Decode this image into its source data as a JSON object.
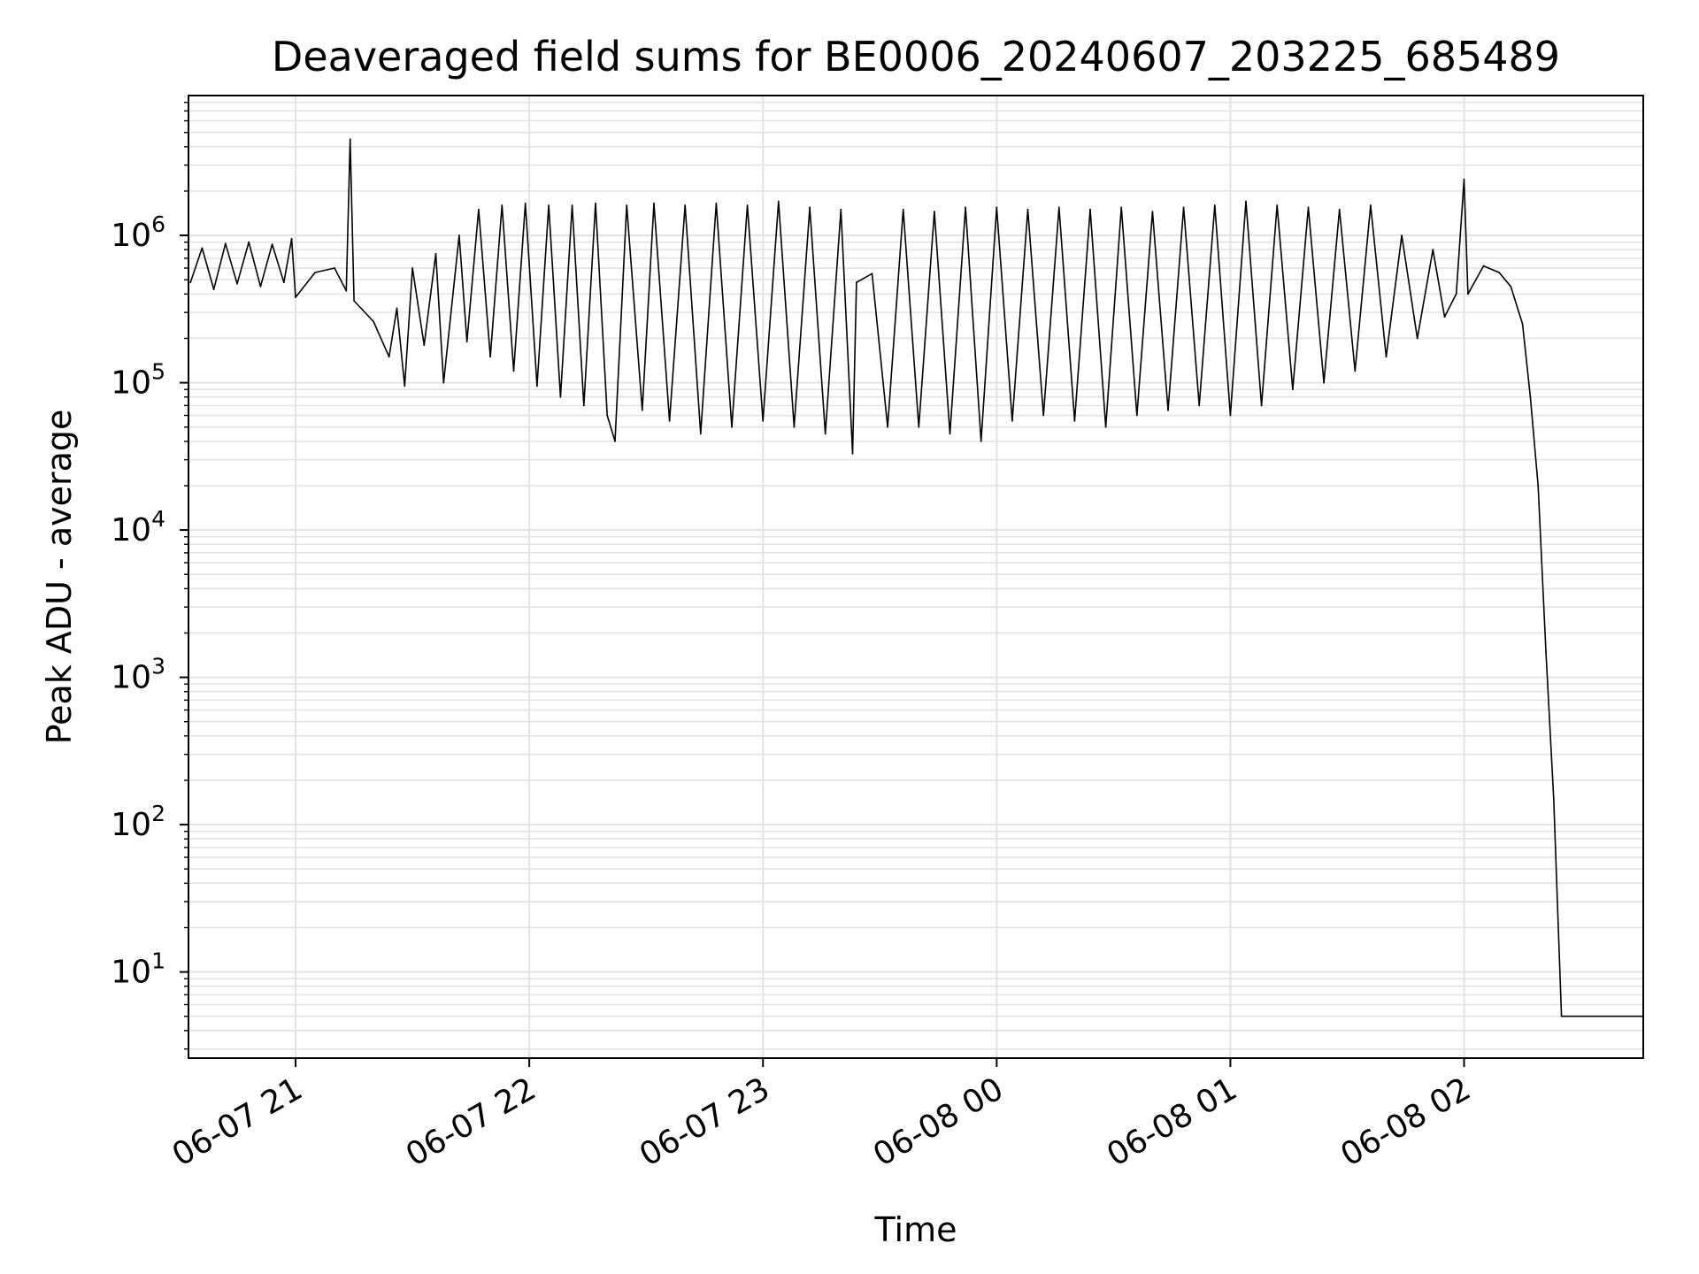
{
  "chart_data": {
    "type": "line",
    "title": "Deaveraged field sums for BE0006_20240607_203225_685489",
    "xlabel": "Time",
    "ylabel": "Peak ADU - average",
    "yscale": "log",
    "grid": true,
    "legend": "none",
    "line_color": "#000000",
    "grid_color": "#e3e3e3",
    "x_ticks": [
      {
        "value": "2024-06-07 21:00",
        "label": "06-07 21"
      },
      {
        "value": "2024-06-07 22:00",
        "label": "06-07 22"
      },
      {
        "value": "2024-06-07 23:00",
        "label": "06-07 23"
      },
      {
        "value": "2024-06-08 00:00",
        "label": "06-08 00"
      },
      {
        "value": "2024-06-08 01:00",
        "label": "06-08 01"
      },
      {
        "value": "2024-06-08 02:00",
        "label": "06-08 02"
      }
    ],
    "y_ticks": [
      {
        "value": 10,
        "base": "10",
        "exp": "1"
      },
      {
        "value": 100,
        "base": "10",
        "exp": "2"
      },
      {
        "value": 1000,
        "base": "10",
        "exp": "3"
      },
      {
        "value": 10000,
        "base": "10",
        "exp": "4"
      },
      {
        "value": 100000,
        "base": "10",
        "exp": "5"
      },
      {
        "value": 1000000,
        "base": "10",
        "exp": "6"
      }
    ],
    "xlim": [
      "2024-06-07 20:32:30",
      "2024-06-08 02:46:00"
    ],
    "ylim": [
      2.6,
      8900000
    ],
    "series": [
      {
        "points": [
          [
            "2024-06-07 20:33:00",
            480000
          ],
          [
            "2024-06-07 20:36:00",
            820000
          ],
          [
            "2024-06-07 20:39:00",
            430000
          ],
          [
            "2024-06-07 20:42:00",
            880000
          ],
          [
            "2024-06-07 20:45:00",
            470000
          ],
          [
            "2024-06-07 20:48:00",
            900000
          ],
          [
            "2024-06-07 20:51:00",
            450000
          ],
          [
            "2024-06-07 20:54:00",
            870000
          ],
          [
            "2024-06-07 20:57:00",
            480000
          ],
          [
            "2024-06-07 20:59:00",
            950000
          ],
          [
            "2024-06-07 21:00:00",
            380000
          ],
          [
            "2024-06-07 21:05:00",
            560000
          ],
          [
            "2024-06-07 21:10:00",
            600000
          ],
          [
            "2024-06-07 21:13:00",
            420000
          ],
          [
            "2024-06-07 21:14:00",
            4500000
          ],
          [
            "2024-06-07 21:15:00",
            360000
          ],
          [
            "2024-06-07 21:20:00",
            260000
          ],
          [
            "2024-06-07 21:24:00",
            150000
          ],
          [
            "2024-06-07 21:26:00",
            320000
          ],
          [
            "2024-06-07 21:28:00",
            95000
          ],
          [
            "2024-06-07 21:30:00",
            600000
          ],
          [
            "2024-06-07 21:33:00",
            180000
          ],
          [
            "2024-06-07 21:36:00",
            750000
          ],
          [
            "2024-06-07 21:38:00",
            100000
          ],
          [
            "2024-06-07 21:42:00",
            1000000
          ],
          [
            "2024-06-07 21:44:00",
            190000
          ],
          [
            "2024-06-07 21:47:00",
            1500000
          ],
          [
            "2024-06-07 21:50:00",
            150000
          ],
          [
            "2024-06-07 21:53:00",
            1600000
          ],
          [
            "2024-06-07 21:56:00",
            120000
          ],
          [
            "2024-06-07 21:59:00",
            1650000
          ],
          [
            "2024-06-07 22:02:00",
            95000
          ],
          [
            "2024-06-07 22:05:00",
            1600000
          ],
          [
            "2024-06-07 22:08:00",
            80000
          ],
          [
            "2024-06-07 22:11:00",
            1600000
          ],
          [
            "2024-06-07 22:14:00",
            70000
          ],
          [
            "2024-06-07 22:17:00",
            1650000
          ],
          [
            "2024-06-07 22:20:00",
            60000
          ],
          [
            "2024-06-07 22:22:00",
            40000
          ],
          [
            "2024-06-07 22:25:00",
            1600000
          ],
          [
            "2024-06-07 22:29:00",
            65000
          ],
          [
            "2024-06-07 22:32:00",
            1650000
          ],
          [
            "2024-06-07 22:36:00",
            55000
          ],
          [
            "2024-06-07 22:40:00",
            1600000
          ],
          [
            "2024-06-07 22:44:00",
            45000
          ],
          [
            "2024-06-07 22:48:00",
            1650000
          ],
          [
            "2024-06-07 22:52:00",
            50000
          ],
          [
            "2024-06-07 22:56:00",
            1600000
          ],
          [
            "2024-06-07 23:00:00",
            55000
          ],
          [
            "2024-06-07 23:04:00",
            1700000
          ],
          [
            "2024-06-07 23:08:00",
            50000
          ],
          [
            "2024-06-07 23:12:00",
            1550000
          ],
          [
            "2024-06-07 23:16:00",
            45000
          ],
          [
            "2024-06-07 23:20:00",
            1500000
          ],
          [
            "2024-06-07 23:23:00",
            33000
          ],
          [
            "2024-06-07 23:24:00",
            480000
          ],
          [
            "2024-06-07 23:28:00",
            550000
          ],
          [
            "2024-06-07 23:32:00",
            50000
          ],
          [
            "2024-06-07 23:36:00",
            1500000
          ],
          [
            "2024-06-07 23:40:00",
            50000
          ],
          [
            "2024-06-07 23:44:00",
            1450000
          ],
          [
            "2024-06-07 23:48:00",
            45000
          ],
          [
            "2024-06-07 23:52:00",
            1550000
          ],
          [
            "2024-06-07 23:56:00",
            40000
          ],
          [
            "2024-06-08 00:00:00",
            1550000
          ],
          [
            "2024-06-08 00:04:00",
            55000
          ],
          [
            "2024-06-08 00:08:00",
            1500000
          ],
          [
            "2024-06-08 00:12:00",
            60000
          ],
          [
            "2024-06-08 00:16:00",
            1550000
          ],
          [
            "2024-06-08 00:20:00",
            55000
          ],
          [
            "2024-06-08 00:24:00",
            1500000
          ],
          [
            "2024-06-08 00:28:00",
            50000
          ],
          [
            "2024-06-08 00:32:00",
            1550000
          ],
          [
            "2024-06-08 00:36:00",
            60000
          ],
          [
            "2024-06-08 00:40:00",
            1450000
          ],
          [
            "2024-06-08 00:44:00",
            65000
          ],
          [
            "2024-06-08 00:48:00",
            1550000
          ],
          [
            "2024-06-08 00:52:00",
            70000
          ],
          [
            "2024-06-08 00:56:00",
            1600000
          ],
          [
            "2024-06-08 01:00:00",
            60000
          ],
          [
            "2024-06-08 01:04:00",
            1700000
          ],
          [
            "2024-06-08 01:08:00",
            70000
          ],
          [
            "2024-06-08 01:12:00",
            1600000
          ],
          [
            "2024-06-08 01:16:00",
            90000
          ],
          [
            "2024-06-08 01:20:00",
            1550000
          ],
          [
            "2024-06-08 01:24:00",
            100000
          ],
          [
            "2024-06-08 01:28:00",
            1500000
          ],
          [
            "2024-06-08 01:32:00",
            120000
          ],
          [
            "2024-06-08 01:36:00",
            1600000
          ],
          [
            "2024-06-08 01:40:00",
            150000
          ],
          [
            "2024-06-08 01:44:00",
            1000000
          ],
          [
            "2024-06-08 01:48:00",
            200000
          ],
          [
            "2024-06-08 01:52:00",
            800000
          ],
          [
            "2024-06-08 01:55:00",
            280000
          ],
          [
            "2024-06-08 01:58:00",
            400000
          ],
          [
            "2024-06-08 02:00:00",
            2400000
          ],
          [
            "2024-06-08 02:01:00",
            400000
          ],
          [
            "2024-06-08 02:05:00",
            620000
          ],
          [
            "2024-06-08 02:09:00",
            560000
          ],
          [
            "2024-06-08 02:12:00",
            450000
          ],
          [
            "2024-06-08 02:15:00",
            250000
          ],
          [
            "2024-06-08 02:17:00",
            80000
          ],
          [
            "2024-06-08 02:19:00",
            20000
          ],
          [
            "2024-06-08 02:21:00",
            1500
          ],
          [
            "2024-06-08 02:23:00",
            150
          ],
          [
            "2024-06-08 02:25:00",
            5
          ],
          [
            "2024-06-08 02:46:00",
            5
          ]
        ]
      }
    ]
  }
}
